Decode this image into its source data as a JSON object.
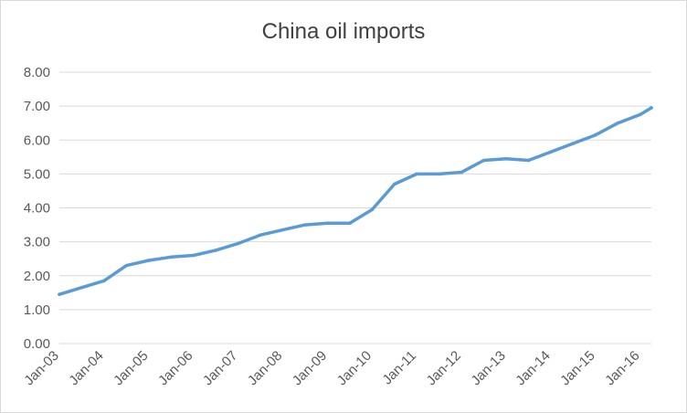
{
  "chart_data": {
    "type": "line",
    "title": "China oil imports",
    "xlabel": "",
    "ylabel": "",
    "ylim": [
      0,
      8
    ],
    "y_ticks": [
      "0.00",
      "1.00",
      "2.00",
      "3.00",
      "4.00",
      "5.00",
      "6.00",
      "7.00",
      "8.00"
    ],
    "x_ticks": [
      "Jan-03",
      "Jan-04",
      "Jan-05",
      "Jan-06",
      "Jan-07",
      "Jan-08",
      "Jan-09",
      "Jan-10",
      "Jan-11",
      "Jan-12",
      "Jan-13",
      "Jan-14",
      "Jan-15",
      "Jan-16"
    ],
    "grid": true,
    "legend": "none",
    "colors": {
      "line": "#5b9bd5",
      "grid": "#d9d9d9",
      "text": "#595959"
    },
    "series": [
      {
        "x": [
          "Jan-03",
          "Jul-03",
          "Jan-04",
          "Jul-04",
          "Jan-05",
          "Jul-05",
          "Jan-06",
          "Jul-06",
          "Jan-07",
          "Jul-07",
          "Jan-08",
          "Jul-08",
          "Jan-09",
          "Jul-09",
          "Jan-10",
          "Jul-10",
          "Jan-11",
          "Jul-11",
          "Jan-12",
          "Jul-12",
          "Jan-13",
          "Jul-13",
          "Jan-14",
          "Jul-14",
          "Jan-15",
          "Jul-15",
          "Jan-16",
          "Apr-16"
        ],
        "values": [
          1.45,
          1.65,
          1.85,
          2.3,
          2.45,
          2.55,
          2.6,
          2.75,
          2.95,
          3.2,
          3.35,
          3.5,
          3.55,
          3.55,
          3.95,
          4.7,
          5.0,
          5.0,
          5.05,
          5.4,
          5.45,
          5.4,
          5.65,
          5.9,
          6.15,
          6.5,
          6.75,
          6.95
        ]
      }
    ]
  }
}
